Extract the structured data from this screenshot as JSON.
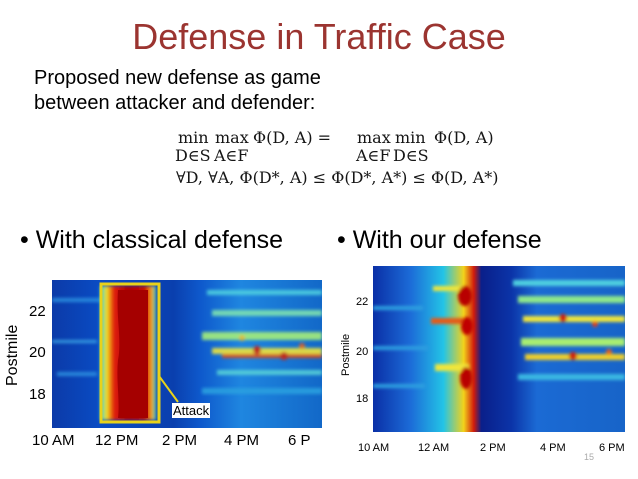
{
  "slide": {
    "title": "Defense in Traffic Case",
    "intro_line1": "Proposed new defense as game",
    "intro_line2": "between attacker and defender:",
    "page_number": "15"
  },
  "equations": {
    "eq1_min": "min",
    "eq1_min_sub": "D∈S",
    "eq1_max": "max",
    "eq1_max_sub": "A∈F",
    "eq1_phi": "Φ(D, A) =",
    "eq1_max2": "max",
    "eq1_max2_sub": "A∈F",
    "eq1_min2": "min",
    "eq1_min2_sub": "D∈S",
    "eq1_phi2": "Φ(D, A)",
    "eq2": "∀D, ∀A,    Φ(D*, A) ≤ Φ(D*, A*) ≤ Φ(D, A*)"
  },
  "left_panel": {
    "bullet": "• With classical defense",
    "ylabel": "Postmile",
    "yticks": [
      "22",
      "20",
      "18"
    ],
    "xticks": [
      "10 AM",
      "12 PM",
      "2 PM",
      "4 PM",
      "6 P"
    ],
    "annotation": "Attack",
    "highlight_color": "#e8d21a"
  },
  "right_panel": {
    "bullet": "• With our defense",
    "ylabel": "Postmile",
    "yticks": [
      "22",
      "20",
      "18"
    ],
    "xticks": [
      "10 AM",
      "12 AM",
      "2 PM",
      "4 PM",
      "6 PM"
    ]
  },
  "colors": {
    "title": "#9b3430",
    "heat_low": "#0a2a9c",
    "heat_high": "#b80000"
  }
}
